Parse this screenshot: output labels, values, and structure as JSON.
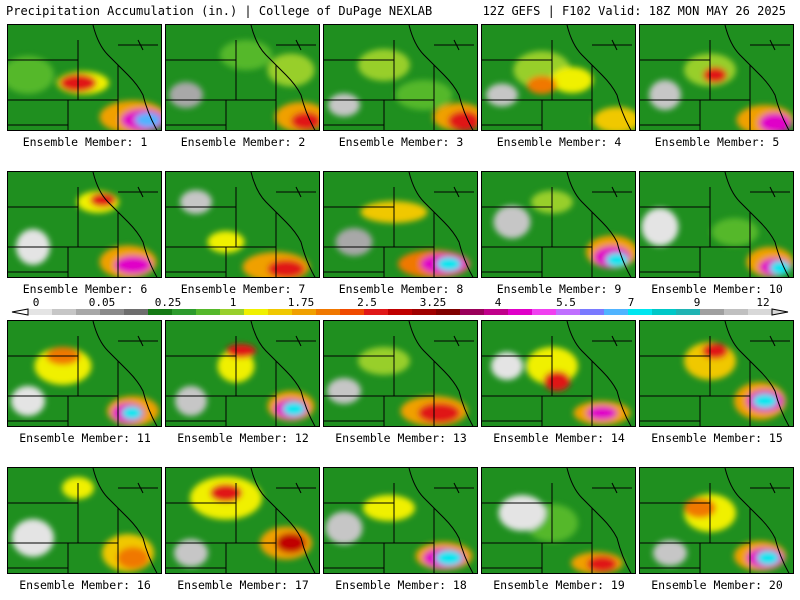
{
  "header": {
    "title": "Precipitation Accumulation (in.) | College of DuPage NEXLAB",
    "run_info": "12Z GEFS | F102 Valid: 18Z MON MAY 26 2025"
  },
  "colorbar": {
    "ticks": [
      "0",
      "0.05",
      "0.25",
      "1",
      "1.75",
      "2.5",
      "3.25",
      "4",
      "5.5",
      "7",
      "9",
      "12"
    ],
    "colors": [
      "#e4e4e4",
      "#c6c6c6",
      "#a8a8a8",
      "#8a8a8a",
      "#6e6e6e",
      "#157a15",
      "#2d9b2d",
      "#55b82b",
      "#98cf2b",
      "#f0f000",
      "#f0c800",
      "#f0a000",
      "#f07800",
      "#f04a00",
      "#e01818",
      "#c00000",
      "#a00000",
      "#800000",
      "#9a005a",
      "#c0008a",
      "#e000c8",
      "#f040f0",
      "#c070ff",
      "#7a7aff",
      "#50b4ff",
      "#00e6f0",
      "#00c8c8",
      "#20b4b4",
      "#a0a0a0",
      "#c0c0c0",
      "#d8d8d8"
    ]
  },
  "members": [
    {
      "label": "Ensemble Member: 1"
    },
    {
      "label": "Ensemble Member: 2"
    },
    {
      "label": "Ensemble Member: 3"
    },
    {
      "label": "Ensemble Member: 4"
    },
    {
      "label": "Ensemble Member: 5"
    },
    {
      "label": "Ensemble Member: 6"
    },
    {
      "label": "Ensemble Member: 7"
    },
    {
      "label": "Ensemble Member: 8"
    },
    {
      "label": "Ensemble Member: 9"
    },
    {
      "label": "Ensemble Member: 10"
    },
    {
      "label": "Ensemble Member: 11"
    },
    {
      "label": "Ensemble Member: 12"
    },
    {
      "label": "Ensemble Member: 13"
    },
    {
      "label": "Ensemble Member: 14"
    },
    {
      "label": "Ensemble Member: 15"
    },
    {
      "label": "Ensemble Member: 16"
    },
    {
      "label": "Ensemble Member: 17"
    },
    {
      "label": "Ensemble Member: 18"
    },
    {
      "label": "Ensemble Member: 19"
    },
    {
      "label": "Ensemble Member: 20"
    }
  ]
}
